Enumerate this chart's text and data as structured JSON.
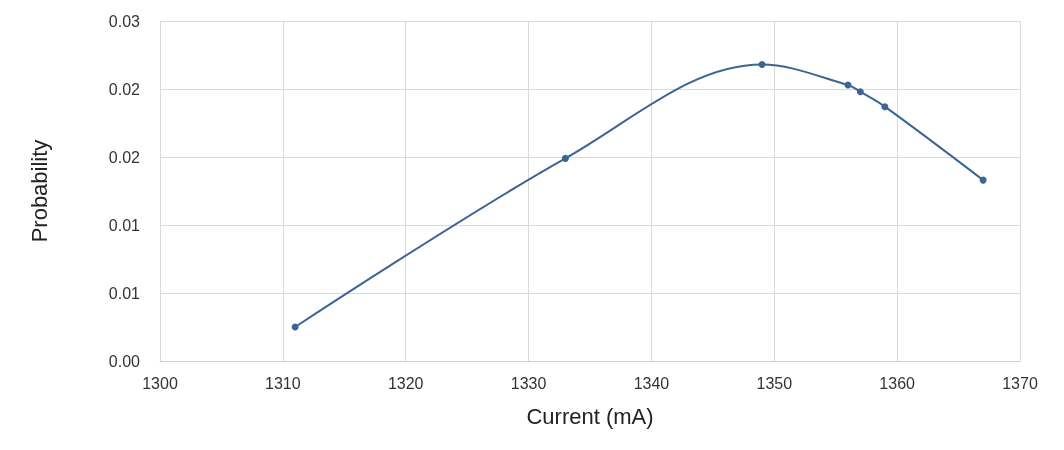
{
  "chart_data": {
    "type": "line",
    "xlabel": "Current (mA)",
    "ylabel": "Probability",
    "x": [
      1311,
      1333,
      1349,
      1356,
      1357,
      1359,
      1367
    ],
    "series": [
      {
        "color": "#3a6595",
        "values": [
          0.0025,
          0.0149,
          0.0218,
          0.0203,
          0.0198,
          0.0187,
          0.0133
        ]
      }
    ],
    "xlim": [
      1300,
      1370
    ],
    "xticks": [
      1300,
      1310,
      1320,
      1330,
      1340,
      1350,
      1360,
      1370
    ],
    "ylim": [
      0,
      0.025
    ],
    "yticks": [
      {
        "value": 0,
        "label": "0.00"
      },
      {
        "value": 0.005,
        "label": "0.01"
      },
      {
        "value": 0.01,
        "label": "0.01"
      },
      {
        "value": 0.015,
        "label": "0.02"
      },
      {
        "value": 0.02,
        "label": "0.02"
      },
      {
        "value": 0.025,
        "label": "0.03"
      }
    ],
    "grid": true,
    "marker": "circle",
    "line_style": "solid"
  }
}
